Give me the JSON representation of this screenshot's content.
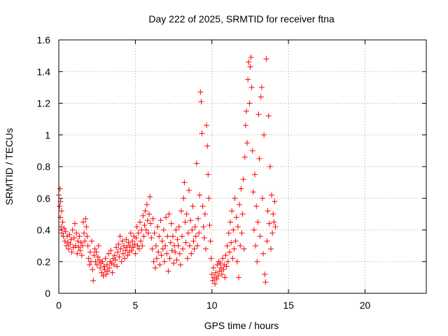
{
  "chart_data": {
    "type": "scatter",
    "title": "Day 222 of 2025, SRMTID for receiver ftna",
    "xlabel": "GPS time / hours",
    "ylabel": "SRMTID / TECUs",
    "xlim": [
      0,
      24
    ],
    "ylim": [
      0,
      1.6
    ],
    "xticks": [
      0,
      5,
      10,
      15,
      20
    ],
    "xtick_labels": [
      "0",
      "5",
      "10",
      "15",
      "20"
    ],
    "yticks": [
      0,
      0.2,
      0.4,
      0.6,
      0.8,
      1,
      1.2,
      1.4,
      1.6
    ],
    "ytick_labels": [
      "0",
      "0.2",
      "0.4",
      "0.6",
      "0.8",
      "1",
      "1.2",
      "1.4",
      "1.6"
    ],
    "grid": true,
    "marker": "+",
    "color": "#ff0000",
    "series": [
      {
        "name": "SRMTID",
        "points": [
          [
            0.0,
            0.62
          ],
          [
            0.05,
            0.55
          ],
          [
            0.08,
            0.66
          ],
          [
            0.1,
            0.48
          ],
          [
            0.12,
            0.58
          ],
          [
            0.15,
            0.42
          ],
          [
            0.18,
            0.52
          ],
          [
            0.2,
            0.38
          ],
          [
            0.25,
            0.45
          ],
          [
            0.3,
            0.36
          ],
          [
            0.35,
            0.41
          ],
          [
            0.4,
            0.33
          ],
          [
            0.45,
            0.39
          ],
          [
            0.5,
            0.3
          ],
          [
            0.55,
            0.36
          ],
          [
            0.6,
            0.32
          ],
          [
            0.65,
            0.28
          ],
          [
            0.7,
            0.37
          ],
          [
            0.75,
            0.31
          ],
          [
            0.8,
            0.34
          ],
          [
            0.85,
            0.26
          ],
          [
            0.9,
            0.4
          ],
          [
            0.95,
            0.29
          ],
          [
            1.0,
            0.35
          ],
          [
            1.05,
            0.44
          ],
          [
            1.1,
            0.3
          ],
          [
            1.15,
            0.38
          ],
          [
            1.2,
            0.25
          ],
          [
            1.25,
            0.33
          ],
          [
            1.3,
            0.29
          ],
          [
            1.35,
            0.36
          ],
          [
            1.4,
            0.27
          ],
          [
            1.45,
            0.32
          ],
          [
            1.5,
            0.24
          ],
          [
            1.55,
            0.3
          ],
          [
            1.6,
            0.45
          ],
          [
            1.65,
            0.38
          ],
          [
            1.7,
            0.33
          ],
          [
            1.75,
            0.47
          ],
          [
            1.8,
            0.42
          ],
          [
            1.85,
            0.36
          ],
          [
            1.9,
            0.3
          ],
          [
            1.95,
            0.22
          ],
          [
            2.0,
            0.18
          ],
          [
            2.05,
            0.26
          ],
          [
            2.1,
            0.2
          ],
          [
            2.15,
            0.33
          ],
          [
            2.2,
            0.15
          ],
          [
            2.25,
            0.08
          ],
          [
            2.3,
            0.24
          ],
          [
            2.35,
            0.28
          ],
          [
            2.4,
            0.2
          ],
          [
            2.45,
            0.26
          ],
          [
            2.5,
            0.18
          ],
          [
            2.55,
            0.23
          ],
          [
            2.6,
            0.3
          ],
          [
            2.65,
            0.21
          ],
          [
            2.7,
            0.16
          ],
          [
            2.75,
            0.19
          ],
          [
            2.8,
            0.13
          ],
          [
            2.85,
            0.2
          ],
          [
            2.9,
            0.11
          ],
          [
            2.95,
            0.17
          ],
          [
            3.0,
            0.15
          ],
          [
            3.05,
            0.22
          ],
          [
            3.1,
            0.12
          ],
          [
            3.15,
            0.18
          ],
          [
            3.2,
            0.14
          ],
          [
            3.25,
            0.25
          ],
          [
            3.3,
            0.16
          ],
          [
            3.35,
            0.2
          ],
          [
            3.4,
            0.27
          ],
          [
            3.45,
            0.19
          ],
          [
            3.5,
            0.13
          ],
          [
            3.55,
            0.22
          ],
          [
            3.6,
            0.18
          ],
          [
            3.65,
            0.24
          ],
          [
            3.7,
            0.21
          ],
          [
            3.75,
            0.29
          ],
          [
            3.8,
            0.17
          ],
          [
            3.85,
            0.26
          ],
          [
            3.9,
            0.31
          ],
          [
            3.95,
            0.23
          ],
          [
            4.0,
            0.36
          ],
          [
            4.05,
            0.28
          ],
          [
            4.1,
            0.2
          ],
          [
            4.15,
            0.33
          ],
          [
            4.2,
            0.25
          ],
          [
            4.25,
            0.3
          ],
          [
            4.3,
            0.22
          ],
          [
            4.35,
            0.27
          ],
          [
            4.4,
            0.34
          ],
          [
            4.45,
            0.29
          ],
          [
            4.5,
            0.24
          ],
          [
            4.55,
            0.32
          ],
          [
            4.6,
            0.26
          ],
          [
            4.65,
            0.3
          ],
          [
            4.7,
            0.38
          ],
          [
            4.75,
            0.27
          ],
          [
            4.8,
            0.33
          ],
          [
            4.85,
            0.29
          ],
          [
            4.9,
            0.36
          ],
          [
            4.95,
            0.31
          ],
          [
            5.0,
            0.25
          ],
          [
            5.05,
            0.35
          ],
          [
            5.1,
            0.42
          ],
          [
            5.15,
            0.3
          ],
          [
            5.2,
            0.38
          ],
          [
            5.25,
            0.28
          ],
          [
            5.3,
            0.45
          ],
          [
            5.35,
            0.33
          ],
          [
            5.4,
            0.4
          ],
          [
            5.45,
            0.3
          ],
          [
            5.5,
            0.49
          ],
          [
            5.55,
            0.36
          ],
          [
            5.6,
            0.43
          ],
          [
            5.65,
            0.52
          ],
          [
            5.7,
            0.4
          ],
          [
            5.75,
            0.56
          ],
          [
            5.8,
            0.46
          ],
          [
            5.85,
            0.38
          ],
          [
            5.9,
            0.5
          ],
          [
            5.95,
            0.61
          ],
          [
            6.0,
            0.44
          ],
          [
            6.05,
            0.35
          ],
          [
            6.1,
            0.28
          ],
          [
            6.15,
            0.47
          ],
          [
            6.2,
            0.2
          ],
          [
            6.25,
            0.38
          ],
          [
            6.3,
            0.16
          ],
          [
            6.35,
            0.3
          ],
          [
            6.4,
            0.22
          ],
          [
            6.45,
            0.42
          ],
          [
            6.5,
            0.26
          ],
          [
            6.55,
            0.36
          ],
          [
            6.6,
            0.18
          ],
          [
            6.65,
            0.46
          ],
          [
            6.7,
            0.24
          ],
          [
            6.75,
            0.33
          ],
          [
            6.8,
            0.28
          ],
          [
            6.85,
            0.4
          ],
          [
            6.9,
            0.2
          ],
          [
            6.95,
            0.3
          ],
          [
            7.0,
            0.48
          ],
          [
            7.05,
            0.25
          ],
          [
            7.1,
            0.36
          ],
          [
            7.15,
            0.14
          ],
          [
            7.2,
            0.5
          ],
          [
            7.25,
            0.22
          ],
          [
            7.3,
            0.32
          ],
          [
            7.35,
            0.44
          ],
          [
            7.4,
            0.27
          ],
          [
            7.45,
            0.36
          ],
          [
            7.5,
            0.19
          ],
          [
            7.55,
            0.3
          ],
          [
            7.6,
            0.26
          ],
          [
            7.65,
            0.4
          ],
          [
            7.7,
            0.21
          ],
          [
            7.75,
            0.34
          ],
          [
            7.8,
            0.3
          ],
          [
            7.85,
            0.42
          ],
          [
            7.9,
            0.25
          ],
          [
            7.95,
            0.18
          ],
          [
            8.0,
            0.52
          ],
          [
            8.05,
            0.36
          ],
          [
            8.1,
            0.28
          ],
          [
            8.15,
            0.6
          ],
          [
            8.2,
            0.7
          ],
          [
            8.25,
            0.45
          ],
          [
            8.3,
            0.32
          ],
          [
            8.35,
            0.5
          ],
          [
            8.4,
            0.22
          ],
          [
            8.45,
            0.38
          ],
          [
            8.5,
            0.65
          ],
          [
            8.55,
            0.3
          ],
          [
            8.6,
            0.46
          ],
          [
            8.65,
            0.25
          ],
          [
            8.7,
            0.4
          ],
          [
            8.75,
            0.55
          ],
          [
            8.8,
            0.33
          ],
          [
            8.85,
            0.28
          ],
          [
            8.9,
            0.42
          ],
          [
            8.95,
            0.36
          ],
          [
            9.0,
            0.82
          ],
          [
            9.05,
            0.3
          ],
          [
            9.1,
            0.47
          ],
          [
            9.15,
            0.38
          ],
          [
            9.2,
            0.62
          ],
          [
            9.25,
            1.27
          ],
          [
            9.3,
            1.21
          ],
          [
            9.35,
            1.01
          ],
          [
            9.4,
            0.55
          ],
          [
            9.45,
            0.42
          ],
          [
            9.5,
            0.35
          ],
          [
            9.55,
            0.5
          ],
          [
            9.6,
            0.28
          ],
          [
            9.65,
            1.06
          ],
          [
            9.7,
            0.93
          ],
          [
            9.75,
            0.75
          ],
          [
            9.8,
            0.6
          ],
          [
            9.85,
            0.43
          ],
          [
            9.9,
            0.33
          ],
          [
            9.95,
            0.22
          ],
          [
            10.0,
            0.12
          ],
          [
            10.05,
            0.08
          ],
          [
            10.1,
            0.16
          ],
          [
            10.15,
            0.1
          ],
          [
            10.2,
            0.06
          ],
          [
            10.25,
            0.13
          ],
          [
            10.3,
            0.09
          ],
          [
            10.35,
            0.18
          ],
          [
            10.4,
            0.11
          ],
          [
            10.45,
            0.2
          ],
          [
            10.5,
            0.14
          ],
          [
            10.55,
            0.19
          ],
          [
            10.6,
            0.16
          ],
          [
            10.65,
            0.12
          ],
          [
            10.7,
            0.22
          ],
          [
            10.75,
            0.15
          ],
          [
            10.8,
            0.18
          ],
          [
            10.85,
            0.1
          ],
          [
            10.9,
            0.24
          ],
          [
            10.95,
            0.17
          ],
          [
            11.0,
            0.3
          ],
          [
            11.05,
            0.2
          ],
          [
            11.1,
            0.38
          ],
          [
            11.15,
            0.26
          ],
          [
            11.2,
            0.45
          ],
          [
            11.25,
            0.32
          ],
          [
            11.3,
            0.52
          ],
          [
            11.35,
            0.22
          ],
          [
            11.4,
            0.4
          ],
          [
            11.45,
            0.28
          ],
          [
            11.5,
            0.6
          ],
          [
            11.55,
            0.33
          ],
          [
            11.6,
            0.48
          ],
          [
            11.65,
            0.2
          ],
          [
            11.7,
            0.42
          ],
          [
            11.75,
            0.1
          ],
          [
            11.8,
            0.56
          ],
          [
            11.85,
            0.3
          ],
          [
            11.9,
            0.66
          ],
          [
            11.95,
            0.38
          ],
          [
            12.0,
            0.5
          ],
          [
            12.05,
            0.72
          ],
          [
            12.1,
            0.28
          ],
          [
            12.15,
            0.86
          ],
          [
            12.2,
            1.06
          ],
          [
            12.25,
            1.15
          ],
          [
            12.3,
            0.95
          ],
          [
            12.35,
            1.35
          ],
          [
            12.4,
            1.46
          ],
          [
            12.45,
            1.2
          ],
          [
            12.5,
            1.43
          ],
          [
            12.55,
            1.49
          ],
          [
            12.6,
            1.3
          ],
          [
            12.65,
            0.9
          ],
          [
            12.7,
            0.64
          ],
          [
            12.75,
            0.4
          ],
          [
            12.8,
            0.75
          ],
          [
            12.85,
            0.3
          ],
          [
            12.9,
            0.55
          ],
          [
            12.95,
            0.2
          ],
          [
            13.0,
            0.45
          ],
          [
            13.05,
            1.13
          ],
          [
            13.1,
            0.85
          ],
          [
            13.15,
            0.36
          ],
          [
            13.2,
            1.24
          ],
          [
            13.25,
            1.3
          ],
          [
            13.3,
            0.6
          ],
          [
            13.35,
            0.25
          ],
          [
            13.4,
            1.0
          ],
          [
            13.45,
            0.12
          ],
          [
            13.5,
            0.07
          ],
          [
            13.55,
            1.48
          ],
          [
            13.6,
            0.33
          ],
          [
            13.65,
            0.52
          ],
          [
            13.7,
            1.12
          ],
          [
            13.75,
            0.44
          ],
          [
            13.8,
            0.8
          ],
          [
            13.85,
            0.28
          ],
          [
            13.9,
            0.62
          ],
          [
            13.95,
            0.38
          ],
          [
            14.0,
            0.5
          ],
          [
            14.05,
            0.45
          ],
          [
            14.1,
            0.58
          ],
          [
            14.15,
            0.42
          ]
        ]
      }
    ]
  }
}
